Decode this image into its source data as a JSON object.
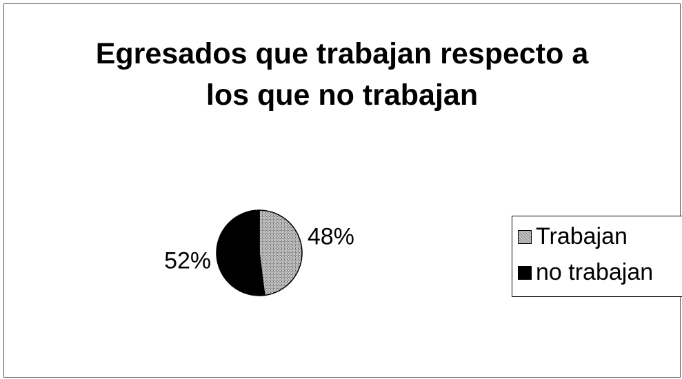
{
  "chart_data": {
    "type": "pie",
    "title": "Egresados que trabajan respecto a los que no trabajan",
    "title_lines": [
      "Egresados que trabajan respecto a",
      "los que no trabajan"
    ],
    "slices": [
      {
        "label": "Trabajan",
        "value": 48,
        "display": "48%",
        "color": "#9a9a9a",
        "pattern": "dotted-gray"
      },
      {
        "label": "no trabajan",
        "value": 52,
        "display": "52%",
        "color": "#000000",
        "pattern": "solid"
      }
    ],
    "legend": {
      "position": "right",
      "entries": [
        "Trabajan",
        "no trabajan"
      ]
    }
  }
}
